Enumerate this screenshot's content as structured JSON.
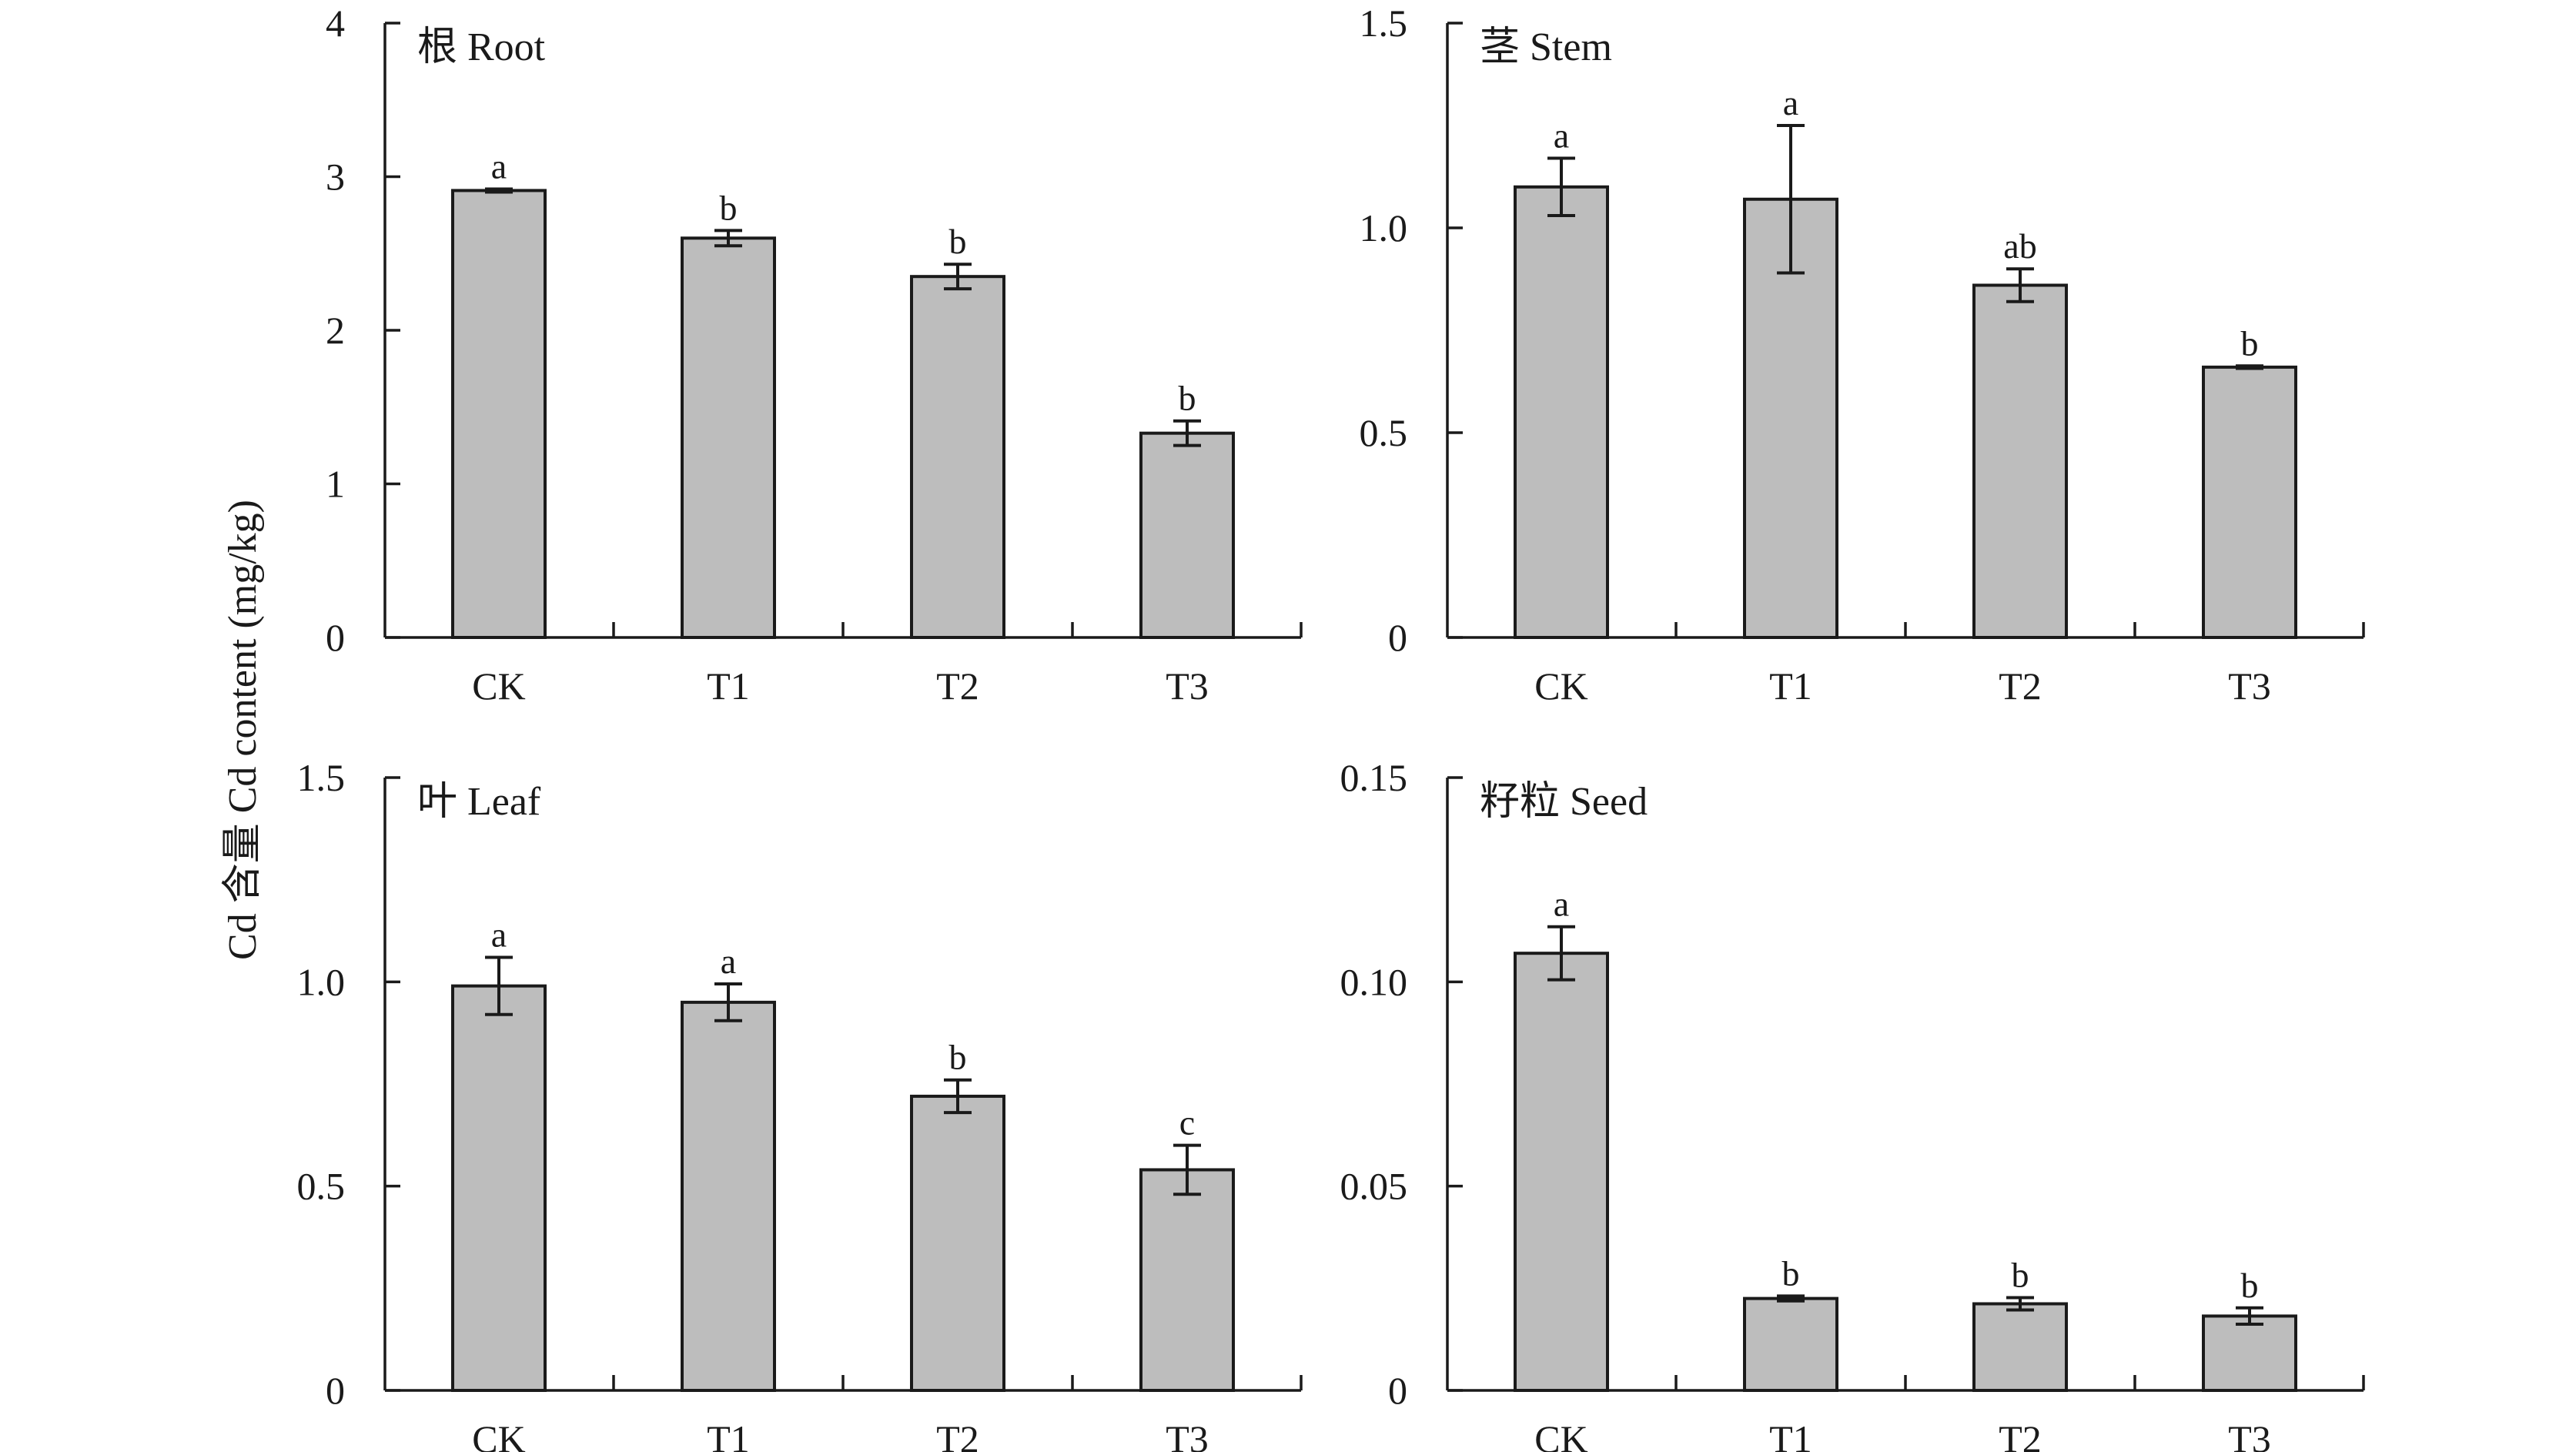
{
  "figure": {
    "ylabel": "Cd 含量 Cd content (mg/kg)"
  },
  "chart_data": [
    {
      "type": "bar",
      "title": "根 Root",
      "categories": [
        "CK",
        "T1",
        "T2",
        "T3"
      ],
      "values": [
        2.91,
        2.6,
        2.35,
        1.33
      ],
      "errors": [
        0.01,
        0.05,
        0.08,
        0.08
      ],
      "significance": [
        "a",
        "b",
        "b",
        "b"
      ],
      "ylim": [
        0,
        4
      ],
      "yticks": [
        0,
        1,
        2,
        3,
        4
      ],
      "ytick_labels": [
        "0",
        "1",
        "2",
        "3",
        "4"
      ]
    },
    {
      "type": "bar",
      "title": "茎 Stem",
      "categories": [
        "CK",
        "T1",
        "T2",
        "T3"
      ],
      "values": [
        1.1,
        1.07,
        0.86,
        0.66
      ],
      "errors": [
        0.07,
        0.18,
        0.04,
        0.003
      ],
      "significance": [
        "a",
        "a",
        "ab",
        "b"
      ],
      "ylim": [
        0,
        1.5
      ],
      "yticks": [
        0,
        0.5,
        1.0,
        1.5
      ],
      "ytick_labels": [
        "0",
        "0.5",
        "1.0",
        "1.5"
      ]
    },
    {
      "type": "bar",
      "title": "叶 Leaf",
      "categories": [
        "CK",
        "T1",
        "T2",
        "T3"
      ],
      "values": [
        0.99,
        0.95,
        0.72,
        0.54
      ],
      "errors": [
        0.07,
        0.045,
        0.04,
        0.06
      ],
      "significance": [
        "a",
        "a",
        "b",
        "c"
      ],
      "ylim": [
        0,
        1.5
      ],
      "yticks": [
        0,
        0.5,
        1.0,
        1.5
      ],
      "ytick_labels": [
        "0",
        "0.5",
        "1.0",
        "1.5"
      ]
    },
    {
      "type": "bar",
      "title": "籽粒 Seed",
      "categories": [
        "CK",
        "T1",
        "T2",
        "T3"
      ],
      "values": [
        0.107,
        0.0225,
        0.0212,
        0.0182
      ],
      "errors": [
        0.0065,
        0.0006,
        0.0015,
        0.002
      ],
      "significance": [
        "a",
        "b",
        "b",
        "b"
      ],
      "ylim": [
        0,
        0.15
      ],
      "yticks": [
        0,
        0.05,
        0.1,
        0.15
      ],
      "ytick_labels": [
        "0",
        "0.05",
        "0.10",
        "0.15"
      ]
    }
  ]
}
